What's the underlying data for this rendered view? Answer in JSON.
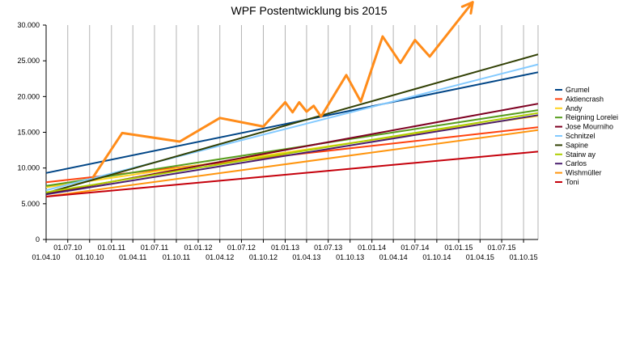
{
  "chart_data": {
    "type": "line",
    "title": "WPF Postentwicklung bis 2015",
    "xlabel": "",
    "ylabel": "",
    "ylim": [
      0,
      30000
    ],
    "grid": "vertical",
    "legend_position": "right",
    "y_ticks": [
      {
        "value": 0,
        "label": "0"
      },
      {
        "value": 5000,
        "label": "5.000"
      },
      {
        "value": 10000,
        "label": "10.000"
      },
      {
        "value": 15000,
        "label": "15.000"
      },
      {
        "value": 20000,
        "label": "20.000"
      },
      {
        "value": 25000,
        "label": "25.000"
      },
      {
        "value": 30000,
        "label": "30.000"
      }
    ],
    "x_range": [
      "2010-04-01",
      "2015-12-01"
    ],
    "x_ticks_upper": [
      {
        "date": "2010-07-01",
        "label": "01.07.10"
      },
      {
        "date": "2011-01-01",
        "label": "01.01.11"
      },
      {
        "date": "2011-07-01",
        "label": "01.07.11"
      },
      {
        "date": "2012-01-01",
        "label": "01.01.12"
      },
      {
        "date": "2012-07-01",
        "label": "01.07.12"
      },
      {
        "date": "2013-01-01",
        "label": "01.01.13"
      },
      {
        "date": "2013-07-01",
        "label": "01.07.13"
      },
      {
        "date": "2014-01-01",
        "label": "01.01.14"
      },
      {
        "date": "2014-07-01",
        "label": "01.07.14"
      },
      {
        "date": "2015-01-01",
        "label": "01.01.15"
      },
      {
        "date": "2015-07-01",
        "label": "01.07.15"
      }
    ],
    "x_ticks_lower": [
      {
        "date": "2010-04-01",
        "label": "01.04.10"
      },
      {
        "date": "2010-10-01",
        "label": "01.10.10"
      },
      {
        "date": "2011-04-01",
        "label": "01.04.11"
      },
      {
        "date": "2011-10-01",
        "label": "01.10.11"
      },
      {
        "date": "2012-04-01",
        "label": "01.04.12"
      },
      {
        "date": "2012-10-01",
        "label": "01.10.12"
      },
      {
        "date": "2013-04-01",
        "label": "01.04.13"
      },
      {
        "date": "2013-10-01",
        "label": "01.10.13"
      },
      {
        "date": "2014-04-01",
        "label": "01.04.14"
      },
      {
        "date": "2014-10-01",
        "label": "01.10.14"
      },
      {
        "date": "2015-04-01",
        "label": "01.04.15"
      },
      {
        "date": "2015-10-01",
        "label": "01.10.15"
      }
    ],
    "series": [
      {
        "name": "Grumel",
        "color": "#004586",
        "points": [
          [
            "2010-04-01",
            9300
          ],
          [
            "2015-12-01",
            23400
          ]
        ]
      },
      {
        "name": "Aktiencrash",
        "color": "#ff420e",
        "points": [
          [
            "2010-04-01",
            8000
          ],
          [
            "2015-12-01",
            15700
          ]
        ]
      },
      {
        "name": "Andy",
        "color": "#ffd320",
        "points": [
          [
            "2010-04-01",
            7300
          ],
          [
            "2015-12-01",
            17300
          ]
        ]
      },
      {
        "name": "Reigning Lorelei",
        "color": "#579d1c",
        "points": [
          [
            "2010-04-01",
            7500
          ],
          [
            "2015-12-01",
            18100
          ]
        ]
      },
      {
        "name": "Jose Mourniho",
        "color": "#7e0021",
        "points": [
          [
            "2010-04-01",
            6400
          ],
          [
            "2015-12-01",
            19000
          ]
        ]
      },
      {
        "name": "Schnitzel",
        "color": "#83caff",
        "points": [
          [
            "2010-04-01",
            6900
          ],
          [
            "2015-12-01",
            24500
          ]
        ]
      },
      {
        "name": "Sapine",
        "color": "#314004",
        "points": [
          [
            "2010-04-01",
            6500
          ],
          [
            "2015-12-01",
            25900
          ]
        ]
      },
      {
        "name": "Stairw ay",
        "color": "#aecf00",
        "points": [
          [
            "2010-04-01",
            6600
          ],
          [
            "2015-12-01",
            17700
          ]
        ]
      },
      {
        "name": "Carlos",
        "color": "#4b1f6f",
        "points": [
          [
            "2010-04-01",
            6300
          ],
          [
            "2015-12-01",
            17400
          ]
        ]
      },
      {
        "name": "Wishmüller",
        "color": "#ff950e",
        "points": [
          [
            "2010-04-01",
            6000
          ],
          [
            "2015-12-01",
            15300
          ]
        ]
      },
      {
        "name": "Toni",
        "color": "#c5000b",
        "points": [
          [
            "2010-04-01",
            6000
          ],
          [
            "2015-12-01",
            12300
          ]
        ]
      }
    ],
    "annotation": {
      "type": "freehand-arrow",
      "color": "#ff8c1a",
      "points": [
        [
          "2010-10-15",
          8700
        ],
        [
          "2011-02-15",
          14900
        ],
        [
          "2011-10-15",
          13700
        ],
        [
          "2012-04-01",
          17000
        ],
        [
          "2012-10-01",
          15800
        ],
        [
          "2013-01-01",
          19200
        ],
        [
          "2013-02-01",
          17800
        ],
        [
          "2013-03-01",
          19200
        ],
        [
          "2013-04-01",
          17900
        ],
        [
          "2013-05-01",
          18700
        ],
        [
          "2013-06-01",
          17200
        ],
        [
          "2013-09-15",
          23000
        ],
        [
          "2013-11-15",
          19300
        ],
        [
          "2014-02-15",
          28400
        ],
        [
          "2014-05-01",
          24700
        ],
        [
          "2014-07-01",
          27900
        ],
        [
          "2014-09-01",
          25600
        ],
        [
          "2015-03-01",
          33200
        ]
      ]
    }
  }
}
